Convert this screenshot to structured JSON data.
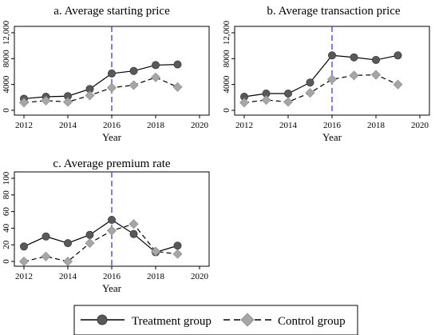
{
  "chart_data": [
    {
      "type": "line",
      "title": "a. Average starting price",
      "xlabel": "Year",
      "ylabel": "",
      "xlim": [
        2012,
        2020
      ],
      "ylim": [
        0,
        12000
      ],
      "xticks": [
        "2012",
        "2014",
        "2016",
        "2018",
        "2020"
      ],
      "yticks": [
        "0",
        "4000",
        "8000",
        "12,000"
      ],
      "vline": 2016,
      "x": [
        2012,
        2013,
        2014,
        2015,
        2016,
        2017,
        2018,
        2019
      ],
      "series": [
        {
          "name": "Treatment group",
          "values": [
            1800,
            2100,
            2200,
            3300,
            5700,
            6100,
            7000,
            7100
          ]
        },
        {
          "name": "Control group",
          "values": [
            1200,
            1500,
            1300,
            2300,
            3500,
            3900,
            5100,
            3600
          ]
        }
      ]
    },
    {
      "type": "line",
      "title": "b. Average transaction price",
      "xlabel": "Year",
      "ylabel": "",
      "xlim": [
        2012,
        2020
      ],
      "ylim": [
        0,
        12000
      ],
      "xticks": [
        "2012",
        "2014",
        "2016",
        "2018",
        "2020"
      ],
      "yticks": [
        "0",
        "4000",
        "8000",
        "12,000"
      ],
      "vline": 2016,
      "x": [
        2012,
        2013,
        2014,
        2015,
        2016,
        2017,
        2018,
        2019
      ],
      "series": [
        {
          "name": "Treatment group",
          "values": [
            2100,
            2600,
            2600,
            4300,
            8500,
            8200,
            7800,
            8500
          ]
        },
        {
          "name": "Control group",
          "values": [
            1200,
            1600,
            1300,
            2700,
            4800,
            5400,
            5500,
            4000
          ]
        }
      ]
    },
    {
      "type": "line",
      "title": "c. Average premium rate",
      "xlabel": "Year",
      "ylabel": "",
      "xlim": [
        2012,
        2020
      ],
      "ylim": [
        0,
        100
      ],
      "xticks": [
        "2012",
        "2014",
        "2016",
        "2018",
        "2020"
      ],
      "yticks": [
        "0",
        "20",
        "40",
        "60",
        "80",
        "100"
      ],
      "vline": 2016,
      "x": [
        2012,
        2013,
        2014,
        2015,
        2016,
        2017,
        2018,
        2019
      ],
      "series": [
        {
          "name": "Treatment group",
          "values": [
            18,
            30,
            22,
            32,
            50,
            33,
            11,
            19
          ]
        },
        {
          "name": "Control group",
          "values": [
            0,
            6,
            0,
            22,
            37,
            45,
            12,
            9
          ]
        }
      ]
    }
  ],
  "legend": {
    "items": [
      {
        "label": "Treatment group",
        "marker": "circle",
        "line": "solid"
      },
      {
        "label": "Control group",
        "marker": "diamond",
        "line": "dashed"
      }
    ]
  },
  "colors": {
    "treatment": "#595959",
    "control": "#a6a6a6",
    "vline": "#3b3bd1",
    "axis": "#000000"
  }
}
